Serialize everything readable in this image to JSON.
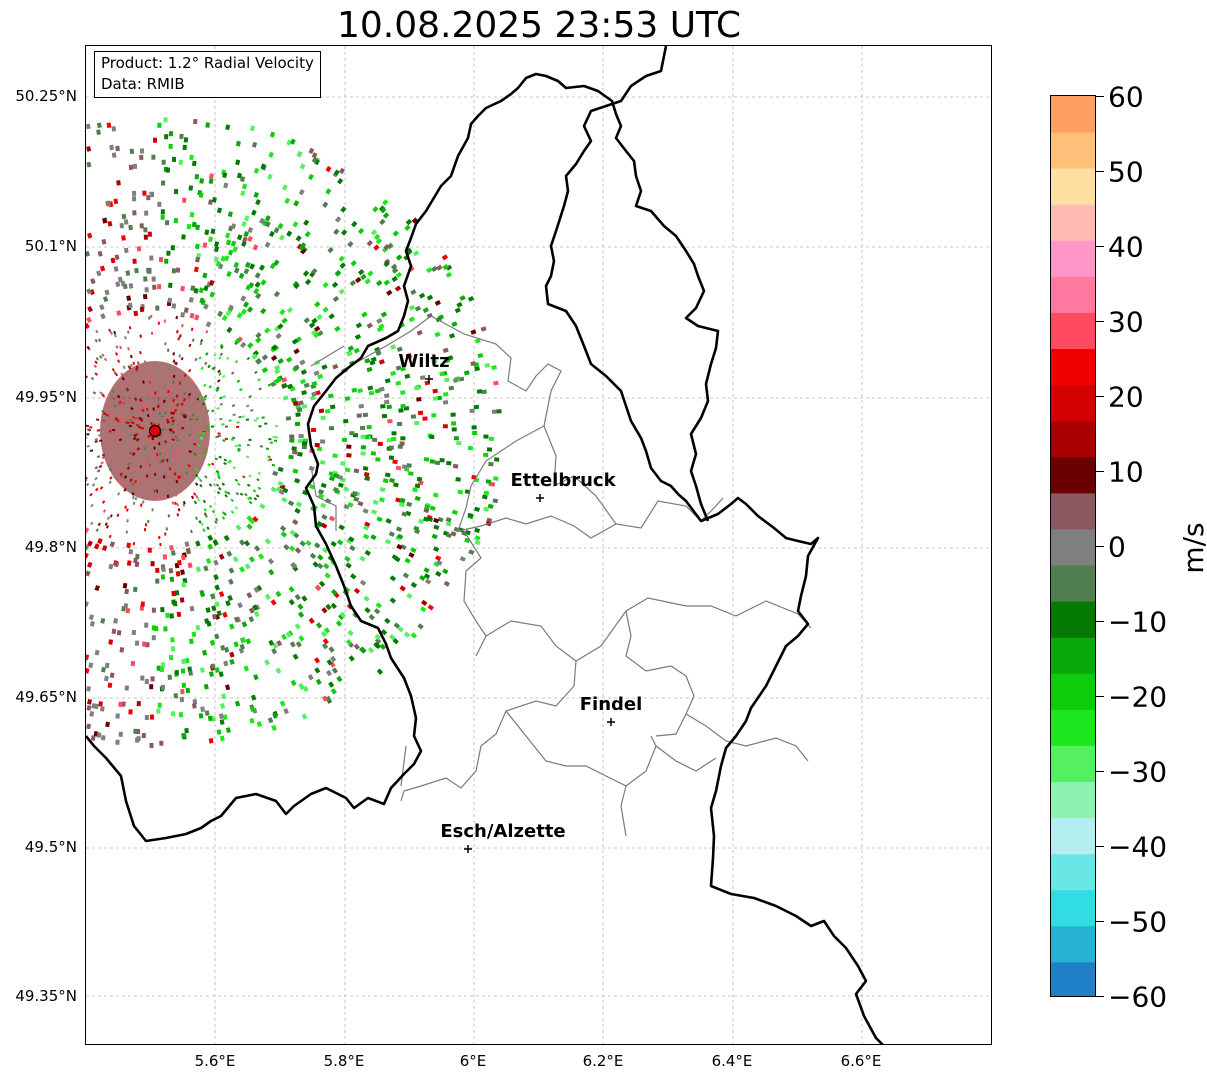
{
  "title": "10.08.2025 23:53 UTC",
  "info": {
    "product": "Product: 1.2° Radial Velocity",
    "source": "Data: RMIB"
  },
  "axes": {
    "lat_labels": [
      "50.25°N",
      "50.1°N",
      "49.95°N",
      "49.8°N",
      "49.65°N",
      "49.5°N",
      "49.35°N"
    ],
    "lon_labels": [
      "5.6°E",
      "5.8°E",
      "6°E",
      "6.2°E",
      "6.4°E",
      "6.6°E"
    ]
  },
  "cities": [
    {
      "name": "Wiltz"
    },
    {
      "name": "Ettelbruck"
    },
    {
      "name": "Findel"
    },
    {
      "name": "Esch/Alzette"
    }
  ],
  "radar": {
    "site_color": "#e00000"
  },
  "colorbar": {
    "unit": "m/s",
    "range": [
      -60,
      60
    ],
    "labels": [
      "60",
      "50",
      "40",
      "30",
      "20",
      "10",
      "0",
      "−10",
      "−20",
      "−30",
      "−40",
      "−50",
      "−60"
    ],
    "colors": {
      "neg60": "#1f7fc8",
      "neg55": "#27b2d2",
      "neg50": "#2fdde2",
      "neg45": "#69e7e7",
      "neg40": "#b4eef0",
      "neg35": "#8ef2b0",
      "neg30": "#55f060",
      "neg25": "#1ee61e",
      "neg20": "#0ccc0c",
      "neg15": "#07a807",
      "neg10": "#047a04",
      "neg5": "#4f7f4f",
      "zero": "#7f7f7f",
      "pos5": "#8a5860",
      "pos10": "#6a0000",
      "pos15": "#a80000",
      "pos20": "#d40000",
      "pos25": "#f20000",
      "pos30": "#ff4a60",
      "pos35": "#ff78a0",
      "pos40": "#ff96c8",
      "pos45": "#ffbcb4",
      "pos50": "#ffe0a0",
      "pos55": "#ffc07a",
      "pos60": "#ffa060"
    }
  }
}
